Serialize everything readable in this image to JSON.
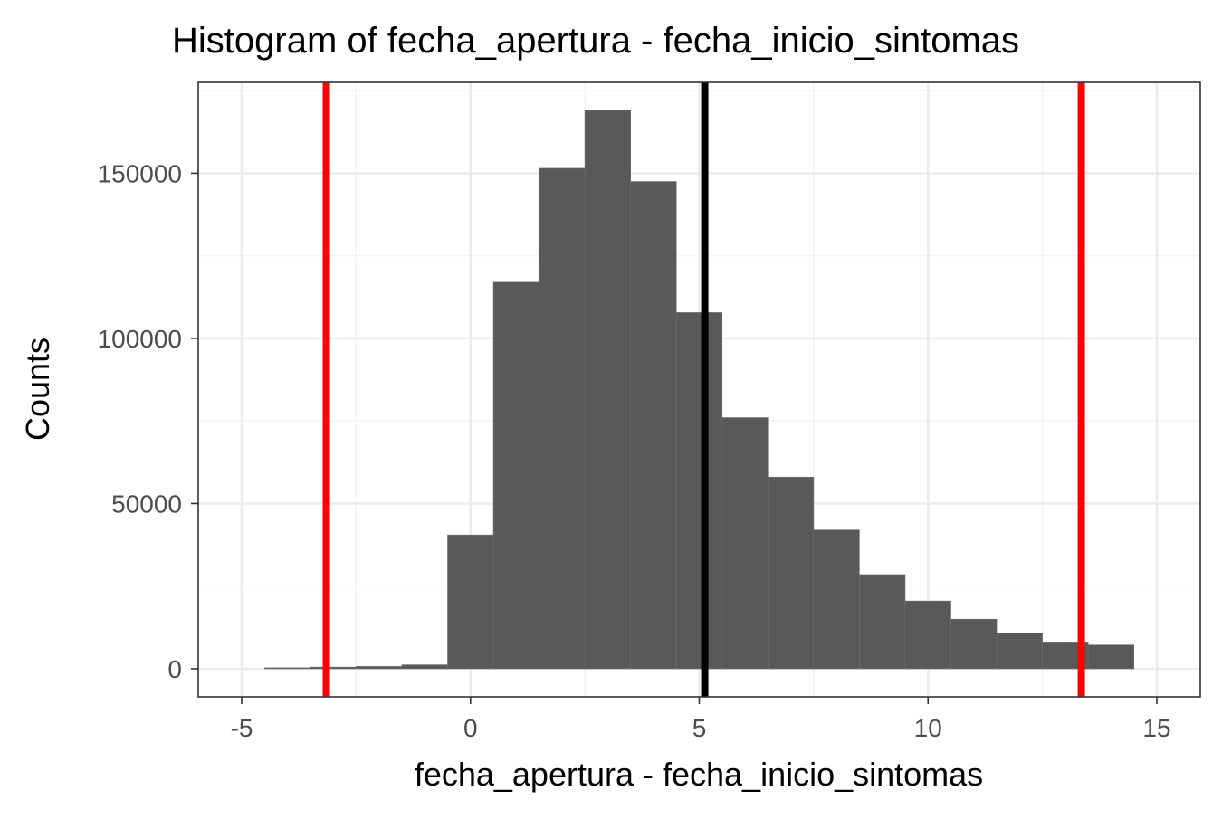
{
  "chart_data": {
    "type": "bar",
    "title": "Histogram of fecha_apertura - fecha_inicio_sintomas",
    "xlabel": "fecha_apertura - fecha_inicio_sintomas",
    "ylabel": "Counts",
    "xlim": [
      -5.95,
      15.95
    ],
    "ylim": [
      -8500,
      177500
    ],
    "x_ticks": [
      -5,
      0,
      5,
      10,
      15
    ],
    "x_tick_labels": [
      "-5",
      "0",
      "5",
      "10",
      "15"
    ],
    "y_ticks": [
      0,
      50000,
      100000,
      150000
    ],
    "y_tick_labels": [
      "0",
      "50000",
      "100000",
      "150000"
    ],
    "bin_width": 1,
    "bins": [
      {
        "x": -4,
        "count": 300
      },
      {
        "x": -3,
        "count": 500
      },
      {
        "x": -2,
        "count": 700
      },
      {
        "x": -1,
        "count": 1200
      },
      {
        "x": 0,
        "count": 40500
      },
      {
        "x": 1,
        "count": 117000
      },
      {
        "x": 2,
        "count": 151500
      },
      {
        "x": 3,
        "count": 169000
      },
      {
        "x": 4,
        "count": 147500
      },
      {
        "x": 5,
        "count": 107800
      },
      {
        "x": 6,
        "count": 76000
      },
      {
        "x": 7,
        "count": 58000
      },
      {
        "x": 8,
        "count": 42000
      },
      {
        "x": 9,
        "count": 28500
      },
      {
        "x": 10,
        "count": 20500
      },
      {
        "x": 11,
        "count": 15000
      },
      {
        "x": 12,
        "count": 10800
      },
      {
        "x": 13,
        "count": 8100
      },
      {
        "x": 14,
        "count": 7200
      }
    ],
    "vlines": [
      {
        "x": -3.15,
        "color": "#ff0000"
      },
      {
        "x": 5.12,
        "color": "#000000"
      },
      {
        "x": 13.35,
        "color": "#ff0000"
      }
    ],
    "grid": true,
    "colors": {
      "bar_fill": "#595959",
      "bar_edge": "#6e6e6e",
      "panel_border": "#333333",
      "grid_major": "#ebebeb",
      "grid_minor": "#f3f3f3",
      "tick_label": "#4d4d4d"
    }
  }
}
